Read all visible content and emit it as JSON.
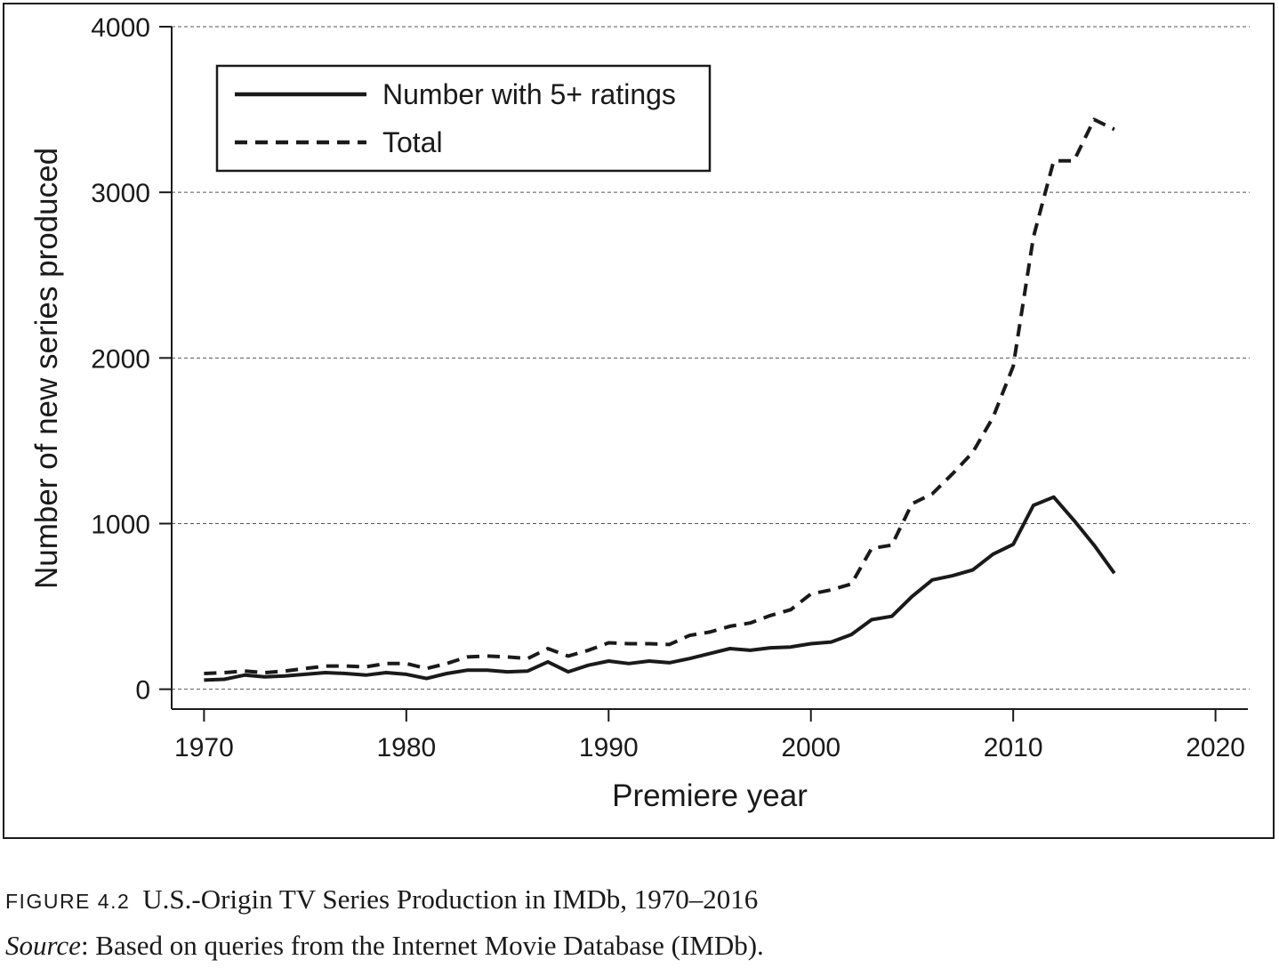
{
  "chart_data": {
    "type": "line",
    "xlabel": "Premiere year",
    "ylabel": "Number of new series produced",
    "xlim": [
      1968.4,
      2021.6
    ],
    "ylim": [
      -120,
      4000
    ],
    "x_ticks": [
      "1970",
      "1980",
      "1990",
      "2000",
      "2010",
      "2020"
    ],
    "y_ticks": [
      "0",
      "1000",
      "2000",
      "3000",
      "4000"
    ],
    "grid": "horizontal dashed",
    "legend_position": "top-left",
    "series": [
      {
        "name": "Number with 5+ ratings",
        "style": "solid",
        "x": [
          1970,
          1971,
          1972,
          1973,
          1974,
          1975,
          1976,
          1977,
          1978,
          1979,
          1980,
          1981,
          1982,
          1983,
          1984,
          1985,
          1986,
          1987,
          1988,
          1989,
          1990,
          1991,
          1992,
          1993,
          1994,
          1995,
          1996,
          1997,
          1998,
          1999,
          2000,
          2001,
          2002,
          2003,
          2004,
          2005,
          2006,
          2007,
          2008,
          2009,
          2010,
          2011,
          2012,
          2013,
          2014,
          2015
        ],
        "y": [
          55,
          60,
          85,
          75,
          80,
          90,
          100,
          95,
          85,
          100,
          90,
          65,
          95,
          115,
          115,
          105,
          110,
          165,
          105,
          145,
          170,
          155,
          170,
          160,
          185,
          215,
          245,
          235,
          250,
          255,
          275,
          285,
          330,
          420,
          440,
          560,
          660,
          685,
          720,
          815,
          875,
          1110,
          1160,
          1020,
          870,
          700
        ]
      },
      {
        "name": "Total",
        "style": "dashed",
        "x": [
          1970,
          1971,
          1972,
          1973,
          1974,
          1975,
          1976,
          1977,
          1978,
          1979,
          1980,
          1981,
          1982,
          1983,
          1984,
          1985,
          1986,
          1987,
          1988,
          1989,
          1990,
          1991,
          1992,
          1993,
          1994,
          1995,
          1996,
          1997,
          1998,
          1999,
          2000,
          2001,
          2002,
          2003,
          2004,
          2005,
          2006,
          2007,
          2008,
          2009,
          2010,
          2011,
          2012,
          2013,
          2014,
          2015
        ],
        "y": [
          95,
          100,
          110,
          100,
          110,
          125,
          140,
          140,
          135,
          155,
          155,
          125,
          155,
          195,
          200,
          195,
          185,
          245,
          200,
          235,
          280,
          275,
          275,
          270,
          325,
          345,
          380,
          400,
          445,
          480,
          575,
          600,
          635,
          850,
          870,
          1120,
          1180,
          1300,
          1430,
          1640,
          1950,
          2730,
          3190,
          3190,
          3440,
          3380
        ]
      }
    ]
  },
  "caption": {
    "figure_label": "FIGURE 4.2",
    "title": "U.S.-Origin TV Series Production in IMDb, 1970–2016",
    "source_label": "Source",
    "source_text": ": Based on queries from the Internet Movie Database (IMDb)."
  },
  "colors": {
    "ink": "#1a1a1a",
    "grid": "#555555",
    "background": "#ffffff"
  }
}
